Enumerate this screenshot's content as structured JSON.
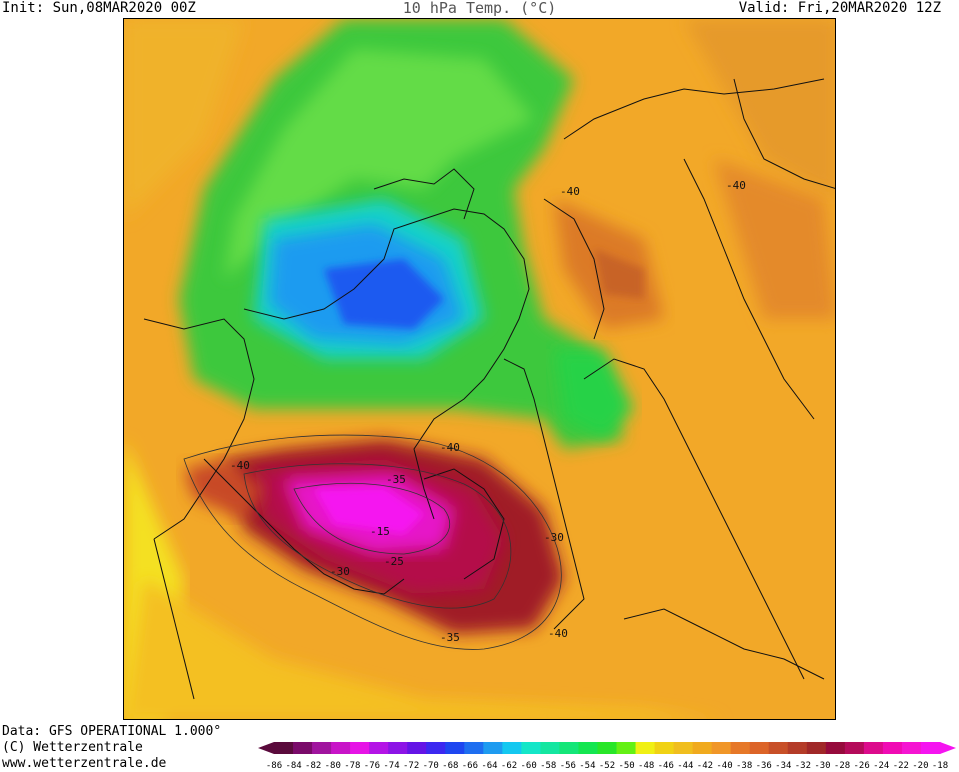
{
  "header": {
    "init": "Init: Sun,08MAR2020 00Z",
    "title": "10 hPa Temp. (°C)",
    "valid": "Valid: Fri,20MAR2020 12Z"
  },
  "footer": {
    "data_source": "Data: GFS OPERATIONAL 1.000°",
    "copyright": "(C) Wetterzentrale",
    "url": "www.wetterzentrale.de"
  },
  "contour_labels": [
    "-40",
    "-40",
    "-40",
    "-40",
    "-35",
    "-30",
    "-25",
    "-15",
    "-30",
    "-35",
    "-40"
  ],
  "legend": {
    "ticks": [
      "-86",
      "-84",
      "-82",
      "-80",
      "-78",
      "-76",
      "-74",
      "-72",
      "-70",
      "-68",
      "-66",
      "-64",
      "-62",
      "-60",
      "-58",
      "-56",
      "-54",
      "-52",
      "-50",
      "-48",
      "-46",
      "-44",
      "-42",
      "-40",
      "-38",
      "-36",
      "-34",
      "-32",
      "-30",
      "-28",
      "-26",
      "-24",
      "-22",
      "-20",
      "-18"
    ],
    "colors": [
      "#5a0a3c",
      "#7a0a6a",
      "#a0149e",
      "#c814c8",
      "#e614e6",
      "#b414e6",
      "#8c14e6",
      "#6414e6",
      "#3c28f0",
      "#1e46f0",
      "#1e6ef0",
      "#1e9bf0",
      "#14c8f0",
      "#14e6c8",
      "#14e6a0",
      "#14e678",
      "#14e650",
      "#28e628",
      "#64f014",
      "#f0f014",
      "#f0d214",
      "#f0be1e",
      "#f0aa1e",
      "#f09628",
      "#e67828",
      "#dc6428",
      "#c85028",
      "#b43c28",
      "#a02828",
      "#960a3c",
      "#b40a5a",
      "#dc0a8c",
      "#f00ab4",
      "#f514d2",
      "#f514f0"
    ]
  }
}
